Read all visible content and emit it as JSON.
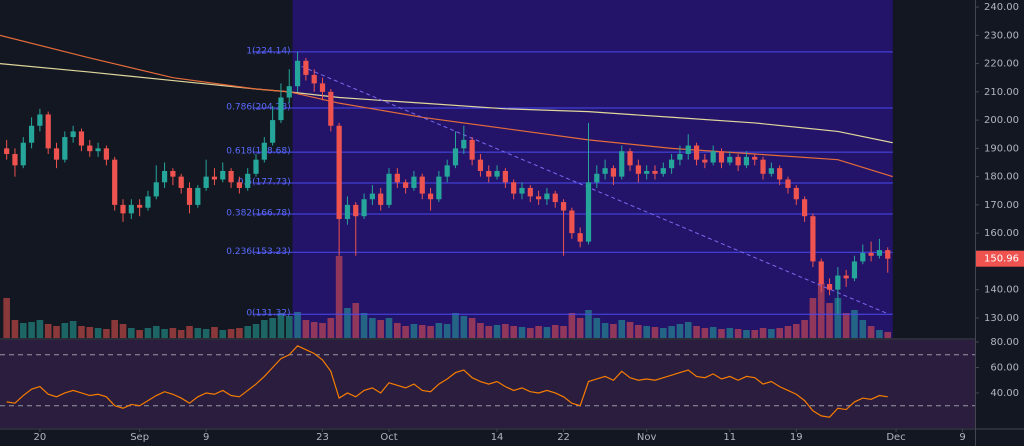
{
  "chart_data": {
    "type": "candlestick",
    "up_color": "#26a69a",
    "down_color": "#ef5350",
    "xlim": [
      -0.8,
      116.5
    ],
    "xticks": [
      {
        "value": 4,
        "label": "20"
      },
      {
        "value": 16,
        "label": "Sep"
      },
      {
        "value": 24,
        "label": "9"
      },
      {
        "value": 38,
        "label": "23"
      },
      {
        "value": 46,
        "label": "Oct"
      },
      {
        "value": 59,
        "label": "14"
      },
      {
        "value": 67,
        "label": "22"
      },
      {
        "value": 77,
        "label": "Nov"
      },
      {
        "value": 87,
        "label": "11"
      },
      {
        "value": 95,
        "label": "19"
      },
      {
        "value": 107,
        "label": "Dec"
      },
      {
        "value": 115,
        "label": "9"
      }
    ],
    "ylim": [
      122.9,
      242.5
    ],
    "yticks": [
      {
        "value": 240,
        "label": "240.00"
      },
      {
        "value": 230,
        "label": "230.00"
      },
      {
        "value": 220,
        "label": "220.00"
      },
      {
        "value": 210,
        "label": "210.00"
      },
      {
        "value": 200,
        "label": "200.00"
      },
      {
        "value": 190,
        "label": "190.00"
      },
      {
        "value": 180,
        "label": "180.00"
      },
      {
        "value": 170,
        "label": "170.00"
      },
      {
        "value": 160,
        "label": "160.00"
      },
      {
        "value": 150,
        "label": "150.00"
      },
      {
        "value": 140,
        "label": "140.00"
      },
      {
        "value": 130,
        "label": "130.00"
      }
    ],
    "open": [
      190,
      188,
      184,
      192,
      198,
      202,
      190,
      186,
      194,
      196,
      191,
      189,
      190,
      186,
      170,
      167,
      170,
      169,
      173,
      178,
      182,
      180,
      176,
      170,
      176,
      180,
      179,
      182,
      178,
      176,
      181,
      186,
      192,
      200,
      208,
      212,
      221,
      216,
      213,
      210,
      198,
      165,
      170,
      166,
      172,
      174,
      170,
      181,
      178,
      176,
      180,
      174,
      172,
      180,
      184,
      190,
      193,
      186,
      182,
      180,
      182,
      178,
      174,
      176,
      173,
      172,
      174,
      171,
      168,
      160,
      157,
      178,
      181,
      183,
      180,
      189,
      184,
      181,
      182,
      181,
      183,
      186,
      188,
      191,
      186,
      185,
      189,
      185,
      187,
      184,
      187,
      186,
      181,
      183,
      179,
      176,
      172,
      166,
      150,
      142,
      140,
      145,
      144,
      150,
      153,
      152,
      154
    ],
    "high": [
      193,
      190,
      194,
      201,
      204,
      203,
      192,
      196,
      198,
      197,
      193,
      192,
      191,
      187,
      172,
      172,
      172,
      175,
      184,
      185,
      183,
      181,
      178,
      177,
      186,
      183,
      185,
      183,
      180,
      183,
      188,
      194,
      205,
      213,
      218,
      224.14,
      222,
      218,
      215,
      211,
      199,
      173,
      171,
      174,
      177,
      176,
      183,
      183,
      179,
      182,
      181,
      176,
      182,
      186,
      196,
      198,
      194,
      188,
      184,
      184,
      183,
      179,
      178,
      177,
      175,
      176,
      175,
      172,
      169,
      162,
      199,
      184,
      186,
      184,
      191,
      190,
      186,
      184,
      184,
      185,
      188,
      191,
      195,
      192,
      188,
      191,
      190,
      189,
      188,
      189,
      188,
      187,
      185,
      184,
      180,
      177,
      173,
      167,
      151,
      144,
      148,
      147,
      152,
      156,
      157,
      158,
      155
    ],
    "low": [
      186,
      180,
      183,
      190,
      196,
      188,
      183,
      185,
      192,
      189,
      187,
      187,
      184,
      168,
      164,
      165,
      166,
      168,
      172,
      176,
      177,
      174,
      167,
      169,
      175,
      177,
      178,
      176,
      174,
      175,
      180,
      185,
      191,
      199,
      206,
      210,
      214,
      210,
      207,
      196,
      152,
      163,
      152,
      165,
      170,
      168,
      169,
      176,
      174,
      175,
      172,
      168,
      171,
      178,
      183,
      188,
      184,
      180,
      178,
      179,
      176,
      172,
      172,
      171,
      170,
      170,
      169,
      152,
      158,
      155,
      156,
      176,
      179,
      177,
      179,
      182,
      178,
      179,
      179,
      180,
      181,
      184,
      186,
      184,
      183,
      184,
      183,
      184,
      182,
      183,
      184,
      179,
      180,
      177,
      174,
      170,
      164,
      148,
      139,
      138,
      131.32,
      141,
      143,
      149,
      150,
      151,
      146
    ],
    "close": [
      188,
      184,
      192,
      198,
      202,
      190,
      186,
      194,
      196,
      191,
      189,
      190,
      186,
      170,
      167,
      170,
      169,
      173,
      178,
      182,
      180,
      176,
      170,
      176,
      180,
      179,
      182,
      178,
      176,
      181,
      186,
      192,
      200,
      208,
      212,
      221,
      216,
      213,
      210,
      198,
      165,
      170,
      166,
      172,
      174,
      170,
      181,
      178,
      176,
      180,
      174,
      172,
      180,
      184,
      190,
      193,
      186,
      182,
      180,
      182,
      178,
      174,
      176,
      173,
      172,
      174,
      171,
      168,
      160,
      157,
      178,
      181,
      183,
      180,
      189,
      184,
      181,
      182,
      181,
      183,
      186,
      188,
      191,
      186,
      185,
      189,
      185,
      187,
      184,
      187,
      186,
      181,
      183,
      179,
      176,
      172,
      166,
      150,
      142,
      140,
      145,
      144,
      150,
      153,
      152,
      154,
      150.96
    ],
    "volume": [
      40,
      18,
      15,
      16,
      18,
      14,
      12,
      15,
      17,
      12,
      11,
      10,
      9,
      18,
      14,
      10,
      8,
      10,
      12,
      9,
      10,
      8,
      12,
      10,
      9,
      11,
      8,
      9,
      10,
      12,
      14,
      18,
      20,
      25,
      22,
      26,
      18,
      16,
      15,
      20,
      82,
      30,
      35,
      25,
      20,
      18,
      20,
      15,
      12,
      14,
      13,
      12,
      15,
      14,
      25,
      22,
      20,
      15,
      12,
      13,
      14,
      12,
      11,
      10,
      12,
      11,
      13,
      12,
      25,
      20,
      28,
      20,
      15,
      14,
      18,
      16,
      13,
      12,
      11,
      10,
      12,
      14,
      16,
      12,
      10,
      11,
      9,
      10,
      9,
      8,
      8,
      10,
      9,
      10,
      12,
      14,
      18,
      40,
      55,
      35,
      40,
      25,
      28,
      18,
      12,
      8,
      6
    ],
    "highlight_x": [
      34.4,
      106.6
    ],
    "fib": [
      {
        "value": 224.14,
        "label": "1(224.14)"
      },
      {
        "value": 204.28,
        "label": "0.786(204.28)"
      },
      {
        "value": 188.68,
        "label": "0.618(188.68)"
      },
      {
        "value": 177.73,
        "label": "0.5(177.73)"
      },
      {
        "value": 166.78,
        "label": "0.382(166.78)"
      },
      {
        "value": 153.23,
        "label": "0.236(153.23)"
      },
      {
        "value": 131.32,
        "label": "0(131.32)"
      }
    ],
    "trendline": {
      "x": [
        35.5,
        106
      ],
      "values": [
        219,
        131.5
      ]
    },
    "ma": [
      {
        "color": "#e0d79c",
        "x": [
          -0.8,
          10,
          20,
          30,
          34,
          40,
          50,
          60,
          70,
          80,
          90,
          100,
          106.6
        ],
        "values": [
          220,
          217,
          214,
          211,
          210,
          208,
          206,
          204,
          203,
          201,
          199,
          196,
          192
        ]
      },
      {
        "color": "#e46b3a",
        "x": [
          -0.8,
          10,
          20,
          30,
          34,
          40,
          50,
          60,
          70,
          80,
          90,
          100,
          106.6
        ],
        "values": [
          230,
          222,
          215,
          211,
          210,
          206,
          201,
          197,
          193,
          190,
          188,
          186,
          180
        ]
      }
    ],
    "rsi": {
      "color": "#f57c00",
      "ylim": [
        12.5,
        81.6
      ],
      "bands": [
        70,
        30
      ],
      "yticks": [
        {
          "value": 80,
          "label": "80.00"
        },
        {
          "value": 60,
          "label": "60.00"
        },
        {
          "value": 40,
          "label": "40.00"
        }
      ],
      "values": [
        33,
        32,
        38,
        43,
        45,
        39,
        37,
        40,
        42,
        40,
        38,
        39,
        37,
        30,
        28,
        31,
        30,
        34,
        38,
        41,
        39,
        36,
        32,
        37,
        40,
        39,
        42,
        38,
        37,
        42,
        47,
        53,
        60,
        67,
        70,
        77,
        74,
        71,
        66,
        57,
        36,
        40,
        37,
        42,
        44,
        40,
        48,
        46,
        44,
        47,
        42,
        41,
        47,
        51,
        56,
        58,
        52,
        49,
        47,
        49,
        45,
        42,
        44,
        41,
        40,
        42,
        40,
        37,
        32,
        30,
        49,
        51,
        53,
        50,
        57,
        52,
        50,
        51,
        50,
        52,
        54,
        56,
        58,
        53,
        52,
        55,
        51,
        53,
        50,
        53,
        52,
        47,
        49,
        45,
        42,
        39,
        34,
        26,
        22,
        21,
        28,
        27,
        33,
        36,
        35,
        38,
        37
      ]
    }
  }
}
